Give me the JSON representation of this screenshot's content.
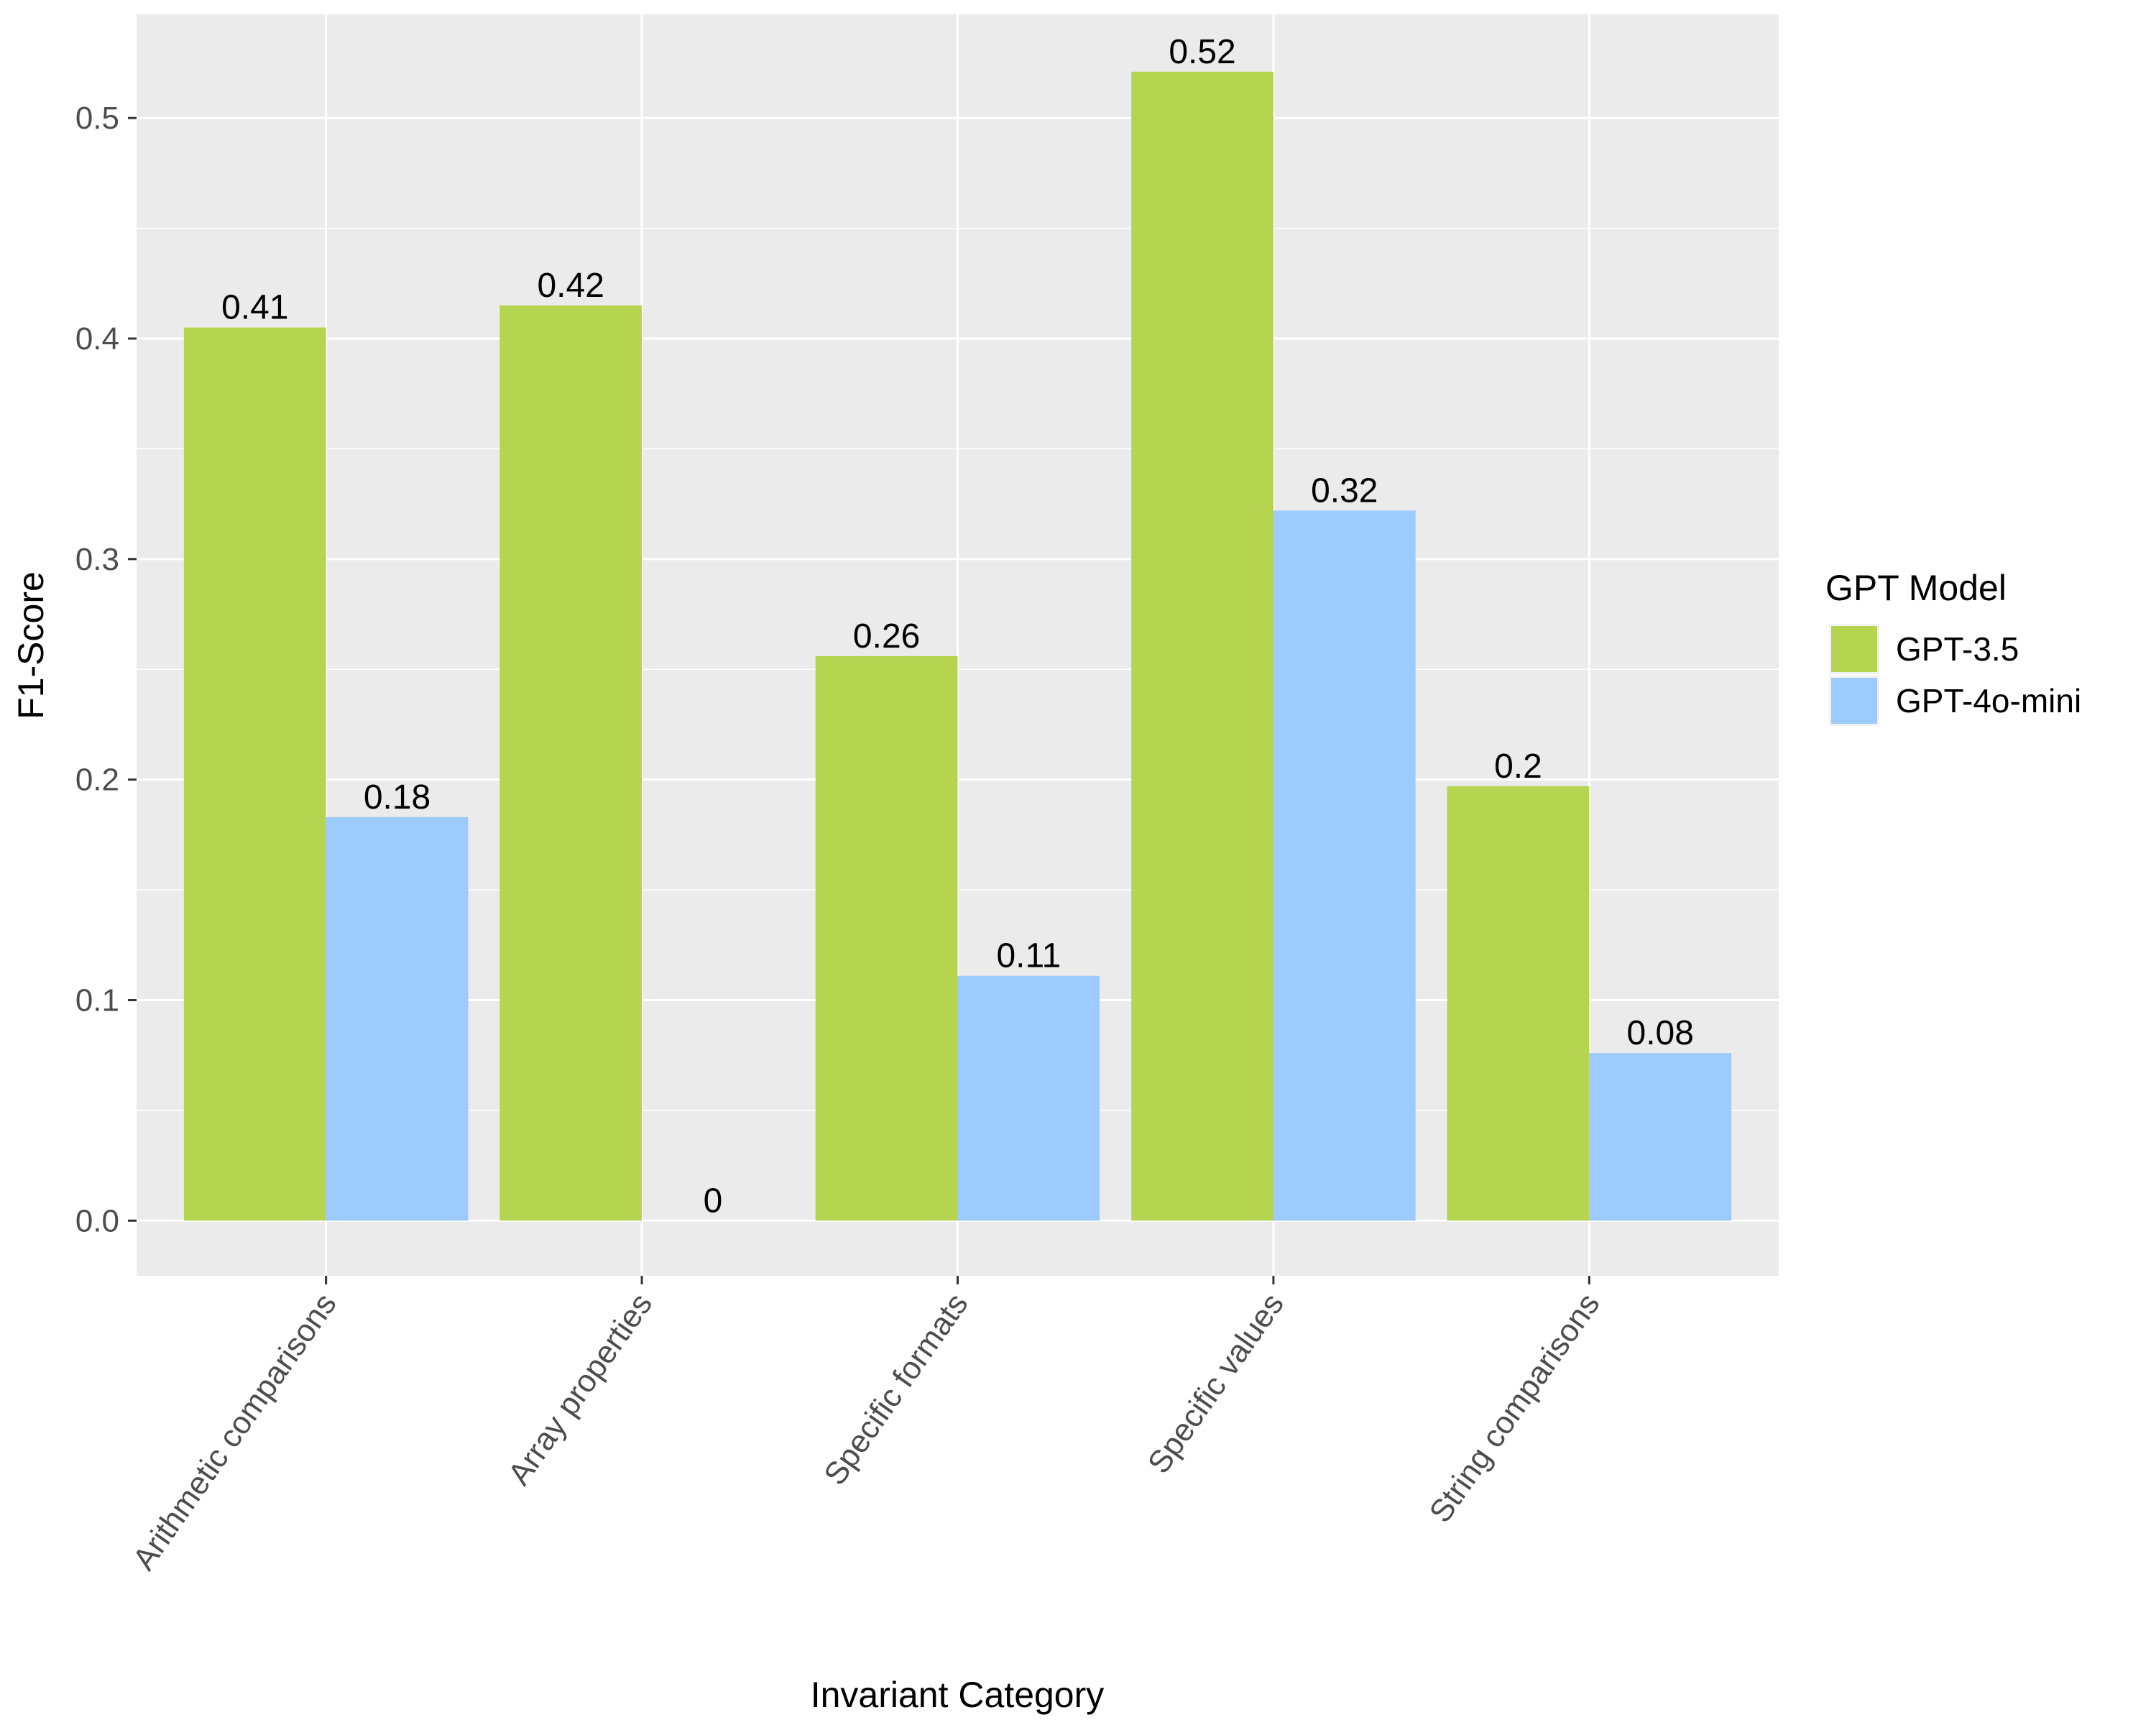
{
  "chart_data": {
    "type": "bar",
    "title": "",
    "xlabel": "Invariant Category",
    "ylabel": "F1-Score",
    "categories": [
      "Arithmetic comparisons",
      "Array properties",
      "Specific formats",
      "Specific values",
      "String comparisons"
    ],
    "series": [
      {
        "name": "GPT-3.5",
        "color": "#b5d44f",
        "values": [
          0.405,
          0.415,
          0.256,
          0.521,
          0.197
        ],
        "labels": [
          "0.41",
          "0.42",
          "0.26",
          "0.52",
          "0.2"
        ]
      },
      {
        "name": "GPT-4o-mini",
        "color": "#9dcbff",
        "values": [
          0.183,
          0.0,
          0.111,
          0.322,
          0.076
        ],
        "labels": [
          "0.18",
          "0",
          "0.11",
          "0.32",
          "0.08"
        ]
      }
    ],
    "ylim": [
      -0.025,
      0.547
    ],
    "yticks": [
      0.0,
      0.1,
      0.2,
      0.3,
      0.4,
      0.5
    ],
    "ytick_labels": [
      "0.0",
      "0.1",
      "0.2",
      "0.3",
      "0.4",
      "0.5"
    ],
    "grid": true,
    "legend": {
      "title": "GPT Model",
      "position": "right"
    },
    "panel_background": "#ebebeb"
  }
}
